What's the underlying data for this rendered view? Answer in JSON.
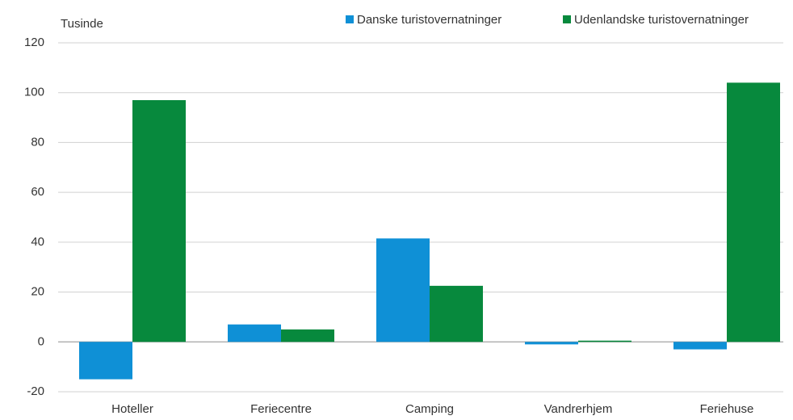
{
  "chart_data": {
    "type": "bar",
    "ylabel": "Tusinde",
    "categories": [
      "Hoteller",
      "Feriecentre",
      "Camping",
      "Vandrerhjem",
      "Feriehuse"
    ],
    "series": [
      {
        "name": "Danske turistovernatninger",
        "color": "#0f90d6",
        "values": [
          -15,
          7,
          41.5,
          -1,
          -3
        ]
      },
      {
        "name": "Udenlandske turistovernatninger",
        "color": "#07893d",
        "values": [
          97,
          5,
          22.5,
          0.5,
          104
        ]
      }
    ],
    "ylim": [
      -20,
      120
    ],
    "yticks": [
      -20,
      0,
      20,
      40,
      60,
      80,
      100,
      120
    ],
    "grid": true,
    "legend": "top"
  }
}
